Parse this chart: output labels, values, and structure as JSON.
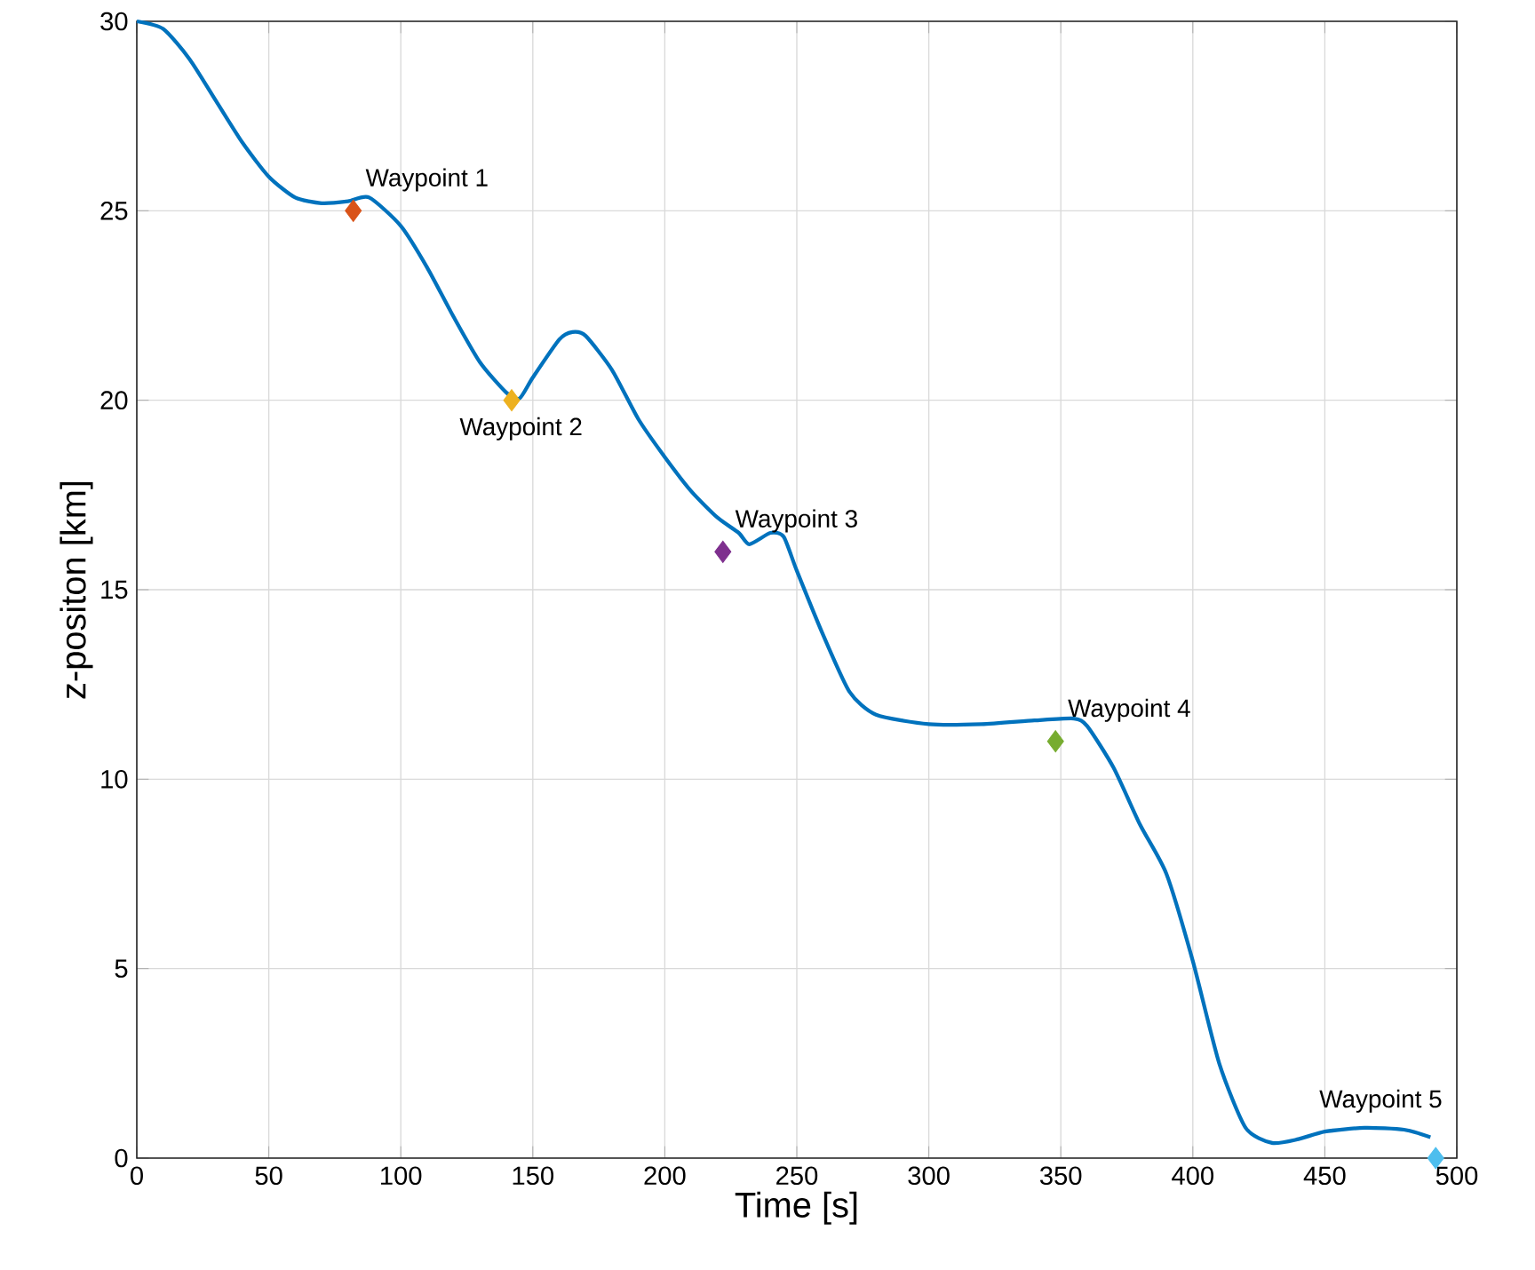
{
  "chart_data": {
    "type": "line",
    "xlabel": "Time [s]",
    "ylabel": "z-positon [km]",
    "xlim": [
      0,
      500
    ],
    "ylim": [
      0,
      30
    ],
    "xticks": [
      0,
      50,
      100,
      150,
      200,
      250,
      300,
      350,
      400,
      450,
      500
    ],
    "yticks": [
      0,
      5,
      10,
      15,
      20,
      25,
      30
    ],
    "grid": true,
    "line_style": "solid",
    "series": [
      {
        "color": "#0072bd",
        "marker": "none",
        "x": [
          0,
          10,
          20,
          30,
          40,
          50,
          60,
          70,
          80,
          88,
          100,
          110,
          120,
          130,
          140,
          145,
          150,
          160,
          165,
          170,
          180,
          190,
          200,
          210,
          220,
          228,
          232,
          240,
          245,
          250,
          260,
          270,
          280,
          300,
          320,
          340,
          355,
          360,
          370,
          380,
          390,
          400,
          410,
          420,
          430,
          440,
          450,
          465,
          480,
          490
        ],
        "values": [
          30,
          29.8,
          29.0,
          27.9,
          26.8,
          25.9,
          25.35,
          25.2,
          25.25,
          25.35,
          24.6,
          23.5,
          22.2,
          21.0,
          20.2,
          20.05,
          20.6,
          21.6,
          21.8,
          21.7,
          20.8,
          19.5,
          18.5,
          17.6,
          16.9,
          16.5,
          16.2,
          16.5,
          16.4,
          15.5,
          13.8,
          12.3,
          11.7,
          11.45,
          11.45,
          11.55,
          11.6,
          11.4,
          10.3,
          8.8,
          7.5,
          5.2,
          2.5,
          0.8,
          0.4,
          0.5,
          0.7,
          0.8,
          0.75,
          0.55
        ]
      },
      {
        "type": "scatter",
        "marker": "diamond",
        "x": [
          82,
          142,
          222,
          348,
          492
        ],
        "values": [
          25,
          20,
          16,
          11,
          0
        ],
        "colors": [
          "#d95319",
          "#edb120",
          "#7e2f8e",
          "#77ac30",
          "#4dbeee"
        ]
      }
    ],
    "annotations": [
      {
        "text": "Waypoint 1",
        "x": 82,
        "y": 25
      },
      {
        "text": "Waypoint 2",
        "x": 142,
        "y": 20
      },
      {
        "text": "Waypoint 3",
        "x": 222,
        "y": 16
      },
      {
        "text": "Waypoint 4",
        "x": 348,
        "y": 11
      },
      {
        "text": "Waypoint 5",
        "x": 492,
        "y": 0
      }
    ]
  }
}
